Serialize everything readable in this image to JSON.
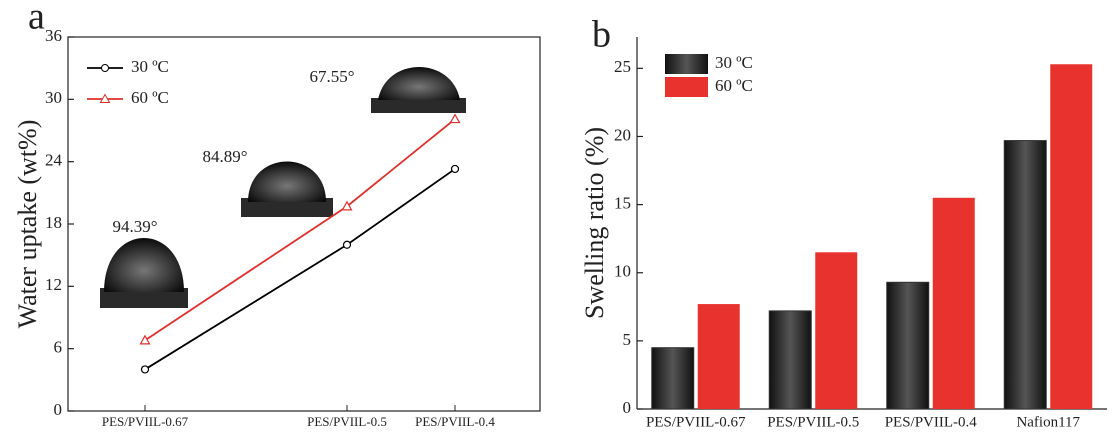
{
  "chart_data": [
    {
      "type": "line",
      "panel_label": "a",
      "y_label": "Water uptake (wt%)",
      "categories": [
        "PES/PVIIL-0.67",
        "PES/PVIIL-0.5",
        "PES/PVIIL-0.4"
      ],
      "series": [
        {
          "name": "30 ºC",
          "color": "#000000",
          "marker": "circle",
          "values": [
            4.0,
            16.0,
            23.3
          ]
        },
        {
          "name": "60 ºC",
          "color": "#e0302c",
          "marker": "triangle",
          "values": [
            6.8,
            19.7,
            28.1
          ]
        }
      ],
      "annotations": [
        "94.39°",
        "84.89°",
        "67.55°"
      ],
      "ylim": [
        0,
        36
      ],
      "yticks": [
        0,
        6,
        12,
        18,
        24,
        30,
        36
      ],
      "legend": "upper left"
    },
    {
      "type": "bar",
      "panel_label": "b",
      "y_label": "Swelling ratio (%)",
      "categories": [
        "PES/PVIIL-0.67",
        "PES/PVIIL-0.5",
        "PES/PVIIL-0.4",
        "Nafion117"
      ],
      "series": [
        {
          "name": "30 ºC",
          "color": "#555555",
          "values": [
            4.5,
            7.2,
            9.3,
            19.7
          ]
        },
        {
          "name": "60 ºC",
          "color": "#e8322e",
          "values": [
            7.7,
            11.5,
            15.5,
            25.3
          ]
        }
      ],
      "ylim": [
        0,
        27.3
      ],
      "yticks": [
        0,
        5,
        10,
        15,
        20,
        25
      ],
      "legend": "upper left"
    }
  ]
}
